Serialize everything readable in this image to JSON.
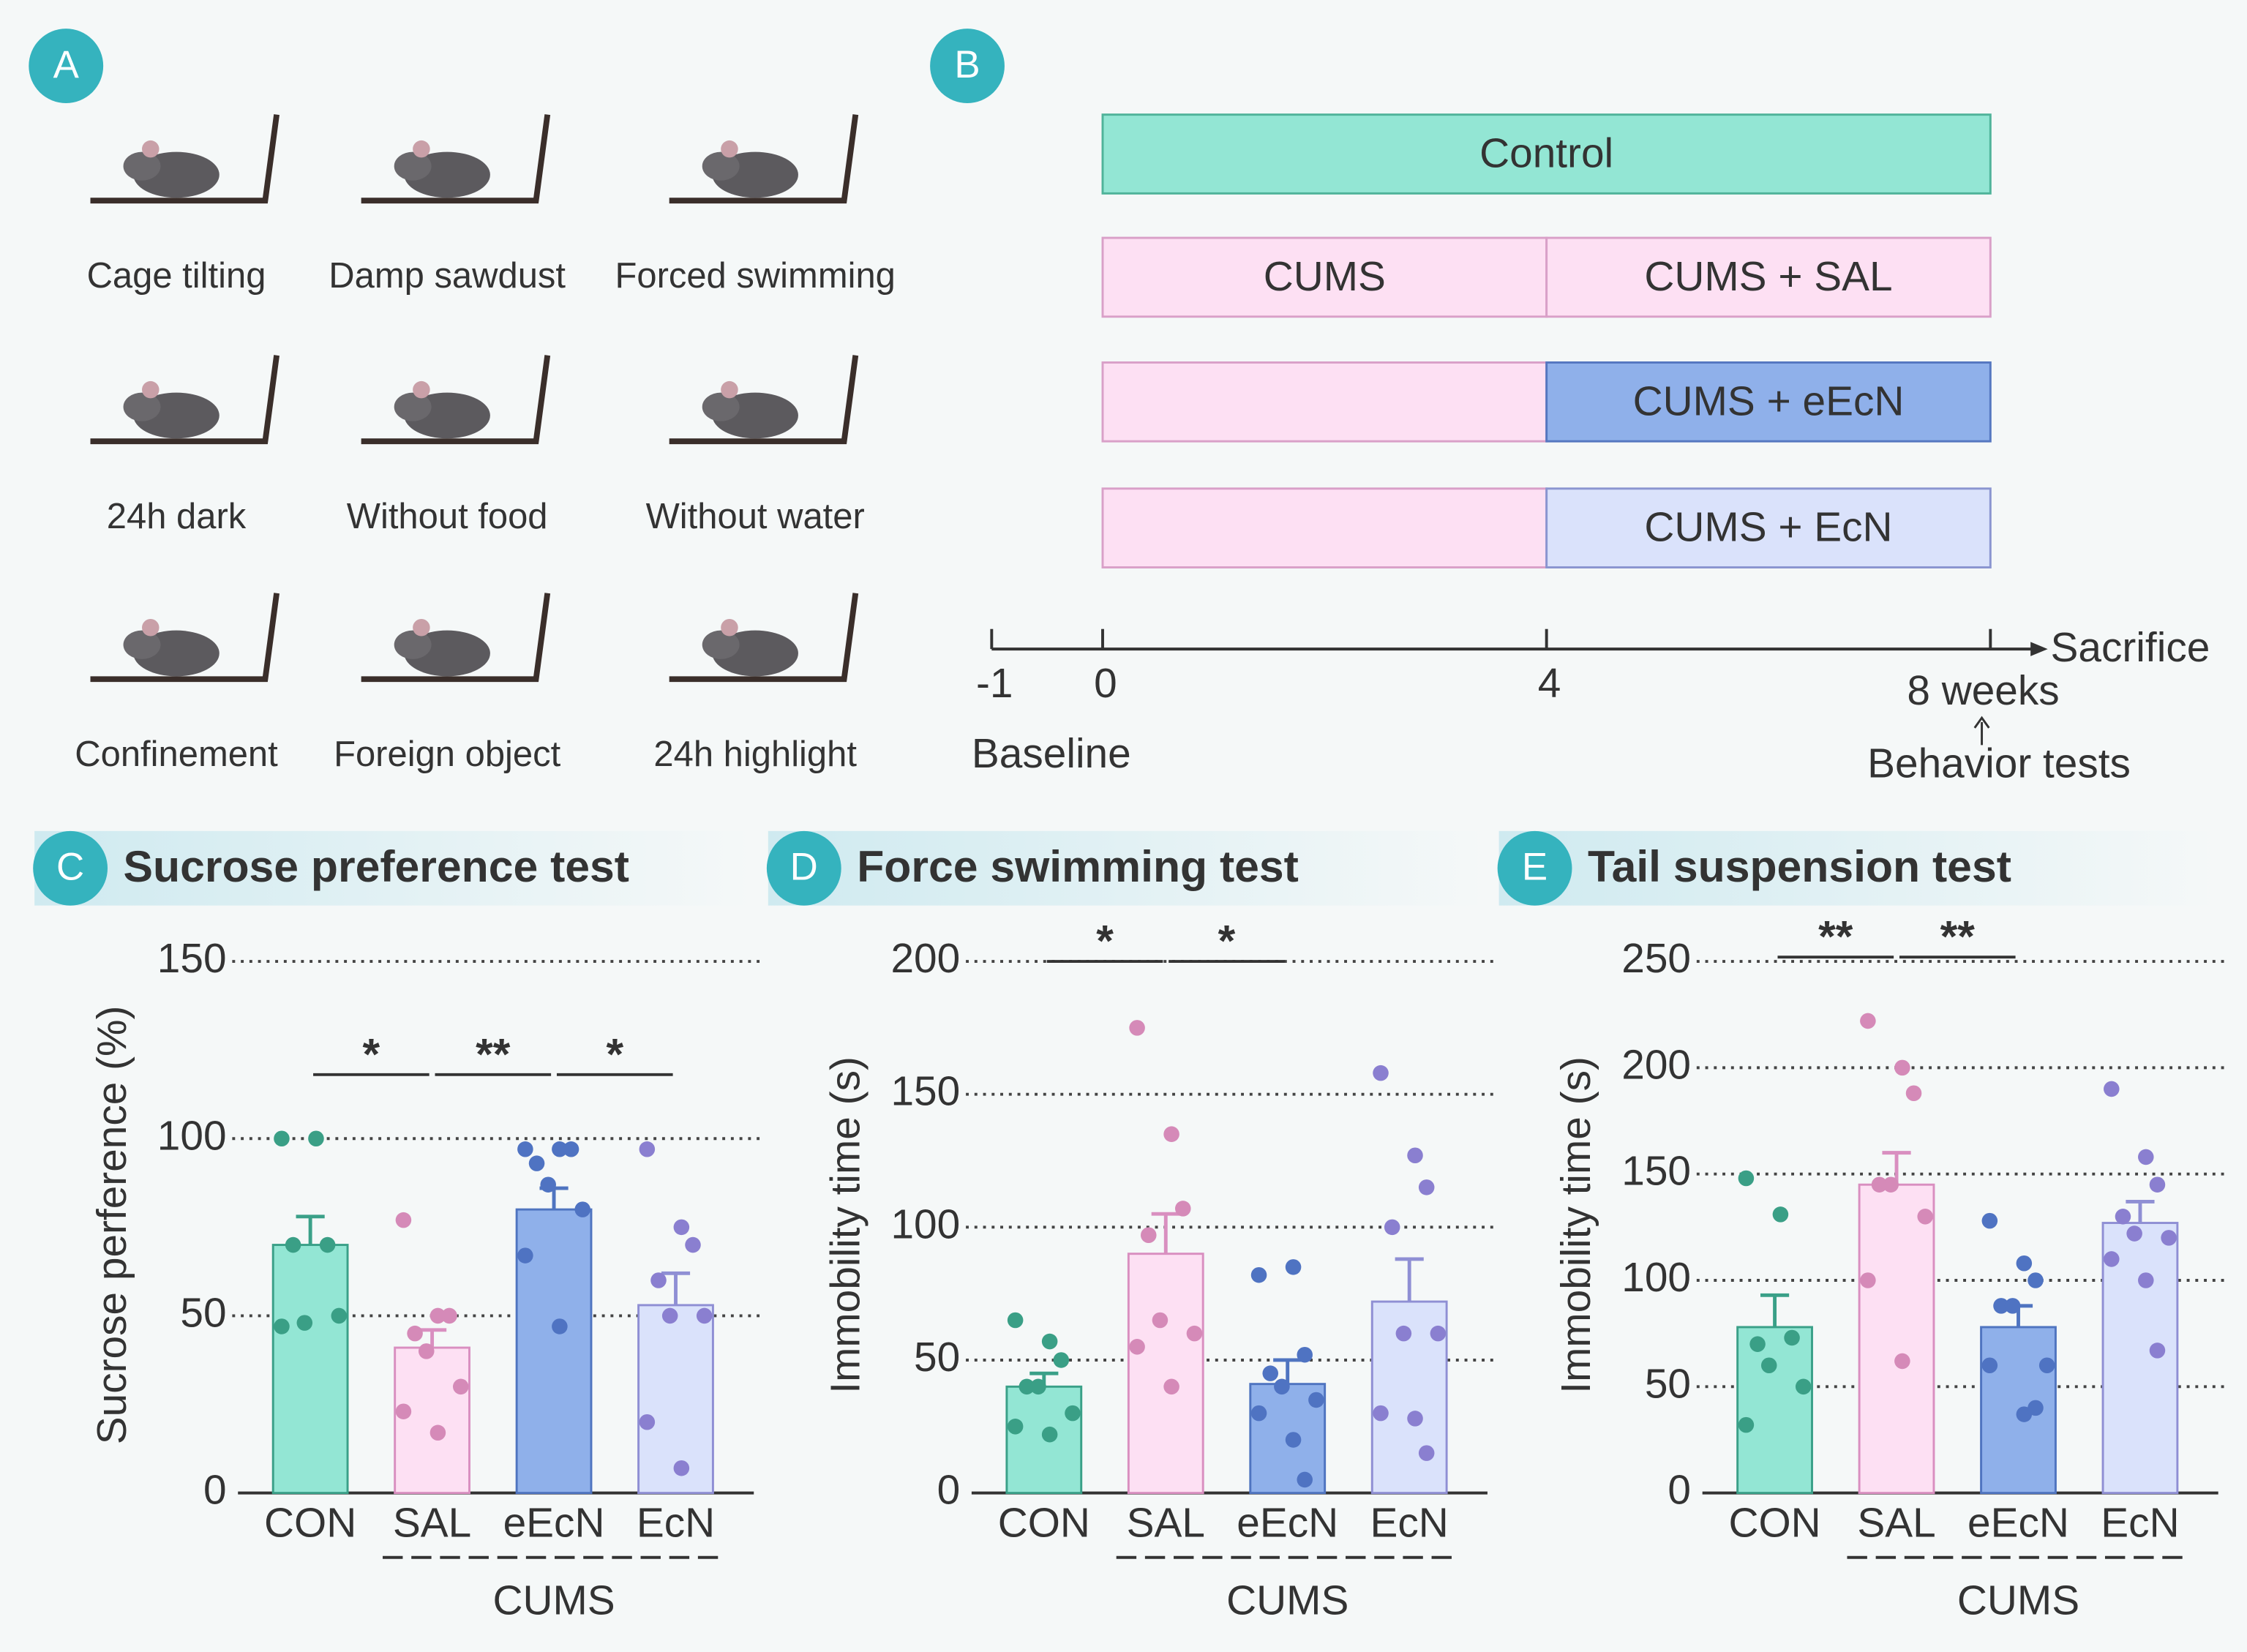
{
  "panel_a": {
    "label": "A",
    "items": [
      "Cage tilting",
      "Damp sawdust",
      "Forced swimming",
      "24h dark",
      "Without food",
      "Without water",
      "Confinement",
      "Foreign object",
      "24h highlight"
    ]
  },
  "panel_b": {
    "label": "B",
    "xlim": [
      -1,
      8
    ],
    "xticks": [
      -1,
      0,
      4,
      {
        "value": 8,
        "label": "8 weeks"
      }
    ],
    "rows": [
      {
        "segments": [
          {
            "label": "Control",
            "start": 0,
            "end": 8,
            "color": "#93e6d4",
            "stroke": "#4fb39a"
          }
        ]
      },
      {
        "segments": [
          {
            "label": "CUMS",
            "start": 0,
            "end": 4,
            "color": "#fde0f3",
            "stroke": "#d9a0c8"
          },
          {
            "label": "CUMS + SAL",
            "start": 4,
            "end": 8,
            "color": "#fde0f3",
            "stroke": "#d9a0c8"
          }
        ]
      },
      {
        "segments": [
          {
            "start": 0,
            "end": 4,
            "color": "#fde0f3",
            "stroke": "#d9a0c8"
          },
          {
            "label": "CUMS + eEcN",
            "start": 4,
            "end": 8,
            "color": "#8fb0ea",
            "stroke": "#5577c0"
          }
        ]
      },
      {
        "segments": [
          {
            "start": 0,
            "end": 4,
            "color": "#fde0f3",
            "stroke": "#d9a0c8"
          },
          {
            "label": "CUMS + EcN",
            "start": 4,
            "end": 8,
            "color": "#dae2fb",
            "stroke": "#8a95d0"
          }
        ]
      }
    ],
    "baseline_label": "Baseline",
    "end_label": "Sacrifice",
    "test_label": "Behavior tests"
  },
  "chart_data": [
    {
      "type": "bar",
      "panel_label": "C",
      "title": "Sucrose preference test",
      "y_label": "Sucrose perference (%)",
      "categories": [
        "CON",
        "SAL",
        "eEcN",
        "EcN"
      ],
      "group_label": "CUMS",
      "values": [
        70,
        41,
        80,
        53
      ],
      "errors": [
        8,
        5,
        6,
        9
      ],
      "points": [
        [
          100,
          100,
          70,
          70,
          48,
          50,
          47
        ],
        [
          77,
          50,
          50,
          45,
          40,
          30,
          23,
          17
        ],
        [
          97,
          97,
          97,
          93,
          87,
          80,
          67,
          47
        ],
        [
          97,
          75,
          70,
          60,
          50,
          50,
          20,
          7
        ]
      ],
      "colors": [
        "#93e6d4",
        "#fde0f3",
        "#8fb0ea",
        "#dae2fb"
      ],
      "strokes": [
        "#3aa088",
        "#d98fc0",
        "#4f74c0",
        "#8f8fd4"
      ],
      "point_colors": [
        "#3a9f86",
        "#d58ab8",
        "#4f73c2",
        "#8a7fd0"
      ],
      "ylim": [
        0,
        150
      ],
      "yticks": [
        0,
        50,
        100,
        150
      ],
      "grid": true,
      "annotations": [
        {
          "text": "*",
          "between": [
            "CON",
            "SAL"
          ]
        },
        {
          "text": "**",
          "between": [
            "SAL",
            "eEcN"
          ]
        },
        {
          "text": "*",
          "between": [
            "eEcN",
            "EcN"
          ]
        }
      ]
    },
    {
      "type": "bar",
      "panel_label": "D",
      "title": "Force swimming test",
      "y_label": "Immobility time (s)",
      "categories": [
        "CON",
        "SAL",
        "eEcN",
        "EcN"
      ],
      "group_label": "CUMS",
      "values": [
        40,
        90,
        41,
        72
      ],
      "errors": [
        5,
        15,
        9,
        16
      ],
      "points": [
        [
          65,
          57,
          50,
          40,
          40,
          30,
          25,
          22
        ],
        [
          175,
          135,
          107,
          97,
          65,
          60,
          55,
          40
        ],
        [
          82,
          85,
          52,
          45,
          40,
          35,
          30,
          20,
          5
        ],
        [
          158,
          127,
          115,
          100,
          60,
          60,
          30,
          28,
          15
        ]
      ],
      "colors": [
        "#93e6d4",
        "#fde0f3",
        "#8fb0ea",
        "#dae2fb"
      ],
      "strokes": [
        "#3aa088",
        "#d98fc0",
        "#4f74c0",
        "#8f8fd4"
      ],
      "point_colors": [
        "#3a9f86",
        "#d58ab8",
        "#4f73c2",
        "#8a7fd0"
      ],
      "ylim": [
        0,
        200
      ],
      "yticks": [
        0,
        50,
        100,
        150,
        200
      ],
      "grid": true,
      "annotations": [
        {
          "text": "*",
          "between": [
            "CON",
            "SAL"
          ]
        },
        {
          "text": "*",
          "between": [
            "SAL",
            "eEcN"
          ]
        }
      ]
    },
    {
      "type": "bar",
      "panel_label": "E",
      "title": "Tail suspension test",
      "y_label": "Immobility time (s)",
      "categories": [
        "CON",
        "SAL",
        "eEcN",
        "EcN"
      ],
      "group_label": "CUMS",
      "values": [
        78,
        145,
        78,
        127
      ],
      "errors": [
        15,
        15,
        10,
        10
      ],
      "points": [
        [
          148,
          131,
          73,
          70,
          60,
          50,
          32
        ],
        [
          222,
          200,
          188,
          145,
          145,
          130,
          100,
          62
        ],
        [
          128,
          108,
          100,
          88,
          88,
          60,
          60,
          37,
          40
        ],
        [
          190,
          158,
          145,
          130,
          122,
          120,
          110,
          100,
          67
        ]
      ],
      "colors": [
        "#93e6d4",
        "#fde0f3",
        "#8fb0ea",
        "#dae2fb"
      ],
      "strokes": [
        "#3aa088",
        "#d98fc0",
        "#4f74c0",
        "#8f8fd4"
      ],
      "point_colors": [
        "#3a9f86",
        "#d58ab8",
        "#4f73c2",
        "#8a7fd0"
      ],
      "ylim": [
        0,
        250
      ],
      "yticks": [
        0,
        50,
        100,
        150,
        200,
        250
      ],
      "grid": true,
      "annotations": [
        {
          "text": "**",
          "between": [
            "CON",
            "SAL"
          ]
        },
        {
          "text": "**",
          "between": [
            "SAL",
            "eEcN"
          ]
        }
      ]
    }
  ]
}
